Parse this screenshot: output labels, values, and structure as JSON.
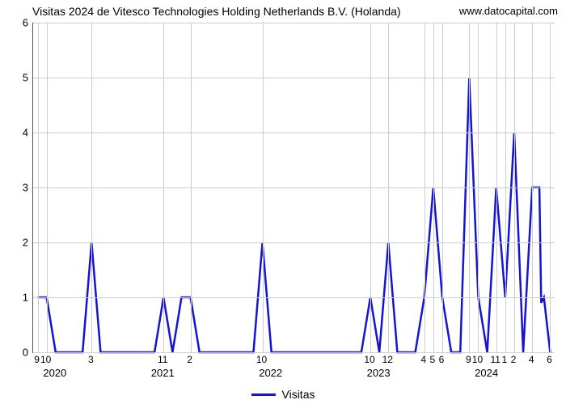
{
  "title": "Visitas 2024 de Vitesco Technologies Holding Netherlands B.V. (Holanda)",
  "url_text": "www.datocapital.com",
  "chart": {
    "type": "line",
    "background_color": "#ffffff",
    "grid_color": "#cccccc",
    "axis_color": "#555555",
    "text_color": "#000000",
    "title_fontsize": 14,
    "tick_fontsize": 13,
    "y": {
      "min": 0,
      "max": 6,
      "ticks": [
        0,
        1,
        2,
        3,
        4,
        5,
        6
      ]
    },
    "x": {
      "plot_min": 8.5,
      "plot_max": 66.5,
      "tick_positions": [
        9,
        10,
        15,
        23,
        26,
        34,
        46,
        48,
        52,
        53,
        54,
        57,
        58,
        60,
        61,
        62,
        64,
        66
      ],
      "tick_labels": [
        "9",
        "10",
        "3",
        "11",
        "2",
        "10",
        "10",
        "12",
        "4",
        "5",
        "6",
        "9",
        "10",
        "11",
        "1",
        "2",
        "4",
        "6"
      ],
      "year_positions": [
        11,
        23,
        35,
        47,
        59
      ],
      "year_labels": [
        "2020",
        "2021",
        "2022",
        "2023",
        "2024"
      ]
    },
    "series": {
      "label": "Visitas",
      "color": "#1414d2",
      "line_width": 2.5,
      "points": [
        [
          9,
          1
        ],
        [
          10,
          1
        ],
        [
          11,
          0
        ],
        [
          12,
          0
        ],
        [
          13,
          0
        ],
        [
          14,
          0
        ],
        [
          15,
          2
        ],
        [
          16,
          0
        ],
        [
          17,
          0
        ],
        [
          18,
          0
        ],
        [
          19,
          0
        ],
        [
          20,
          0
        ],
        [
          21,
          0
        ],
        [
          22,
          0
        ],
        [
          23,
          1
        ],
        [
          24,
          0
        ],
        [
          25,
          1
        ],
        [
          26,
          1
        ],
        [
          27,
          0
        ],
        [
          28,
          0
        ],
        [
          29,
          0
        ],
        [
          30,
          0
        ],
        [
          31,
          0
        ],
        [
          32,
          0
        ],
        [
          33,
          0
        ],
        [
          34,
          2
        ],
        [
          35,
          0
        ],
        [
          36,
          0
        ],
        [
          37,
          0
        ],
        [
          38,
          0
        ],
        [
          39,
          0
        ],
        [
          40,
          0
        ],
        [
          41,
          0
        ],
        [
          42,
          0
        ],
        [
          43,
          0
        ],
        [
          44,
          0
        ],
        [
          45,
          0
        ],
        [
          46,
          1
        ],
        [
          47,
          0
        ],
        [
          48,
          2
        ],
        [
          49,
          0
        ],
        [
          50,
          0
        ],
        [
          51,
          0
        ],
        [
          52,
          1
        ],
        [
          53,
          3
        ],
        [
          54,
          1
        ],
        [
          55,
          0
        ],
        [
          56,
          0
        ],
        [
          57,
          5
        ],
        [
          58,
          1
        ],
        [
          59,
          0
        ],
        [
          60,
          3
        ],
        [
          61,
          1
        ],
        [
          62,
          4
        ],
        [
          63,
          0
        ],
        [
          64,
          3
        ],
        [
          64.8,
          3
        ],
        [
          65,
          0.9
        ],
        [
          65.3,
          1
        ],
        [
          66,
          0
        ]
      ]
    }
  },
  "legend_label": "Visitas"
}
